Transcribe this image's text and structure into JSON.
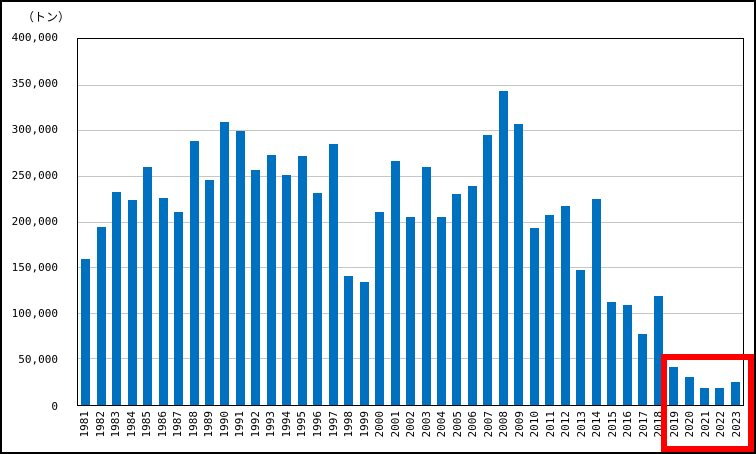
{
  "chart_data": {
    "type": "bar",
    "title": "",
    "xlabel": "",
    "ylabel": "（トン）",
    "ylim": [
      0,
      400000
    ],
    "ytick_step": 50000,
    "ytick_labels": [
      "0",
      "50,000",
      "100,000",
      "150,000",
      "200,000",
      "250,000",
      "300,000",
      "350,000",
      "400,000"
    ],
    "grid": true,
    "legend": "none",
    "categories": [
      "1981",
      "1982",
      "1983",
      "1984",
      "1985",
      "1986",
      "1987",
      "1988",
      "1989",
      "1990",
      "1991",
      "1992",
      "1993",
      "1994",
      "1995",
      "1996",
      "1997",
      "1998",
      "1999",
      "2000",
      "2001",
      "2002",
      "2003",
      "2004",
      "2005",
      "2006",
      "2007",
      "2008",
      "2009",
      "2010",
      "2011",
      "2012",
      "2013",
      "2014",
      "2015",
      "2016",
      "2017",
      "2018",
      "2019",
      "2020",
      "2021",
      "2022",
      "2023"
    ],
    "values": [
      160000,
      195000,
      233000,
      225000,
      261000,
      227000,
      212000,
      289000,
      247000,
      310000,
      300000,
      258000,
      274000,
      252000,
      273000,
      232000,
      286000,
      141000,
      135000,
      212000,
      267000,
      206000,
      261000,
      206000,
      231000,
      240000,
      296000,
      344000,
      308000,
      194000,
      208000,
      218000,
      148000,
      226000,
      113000,
      110000,
      78000,
      120000,
      42000,
      31000,
      19000,
      18500,
      25000
    ],
    "bar_color": "#0070c0",
    "gridline_color": "#c6c6c6",
    "highlight": {
      "shape": "red-rectangle",
      "color": "#fe0000",
      "years_enclosed": [
        "2019",
        "2020",
        "2021",
        "2022",
        "2023"
      ]
    }
  }
}
